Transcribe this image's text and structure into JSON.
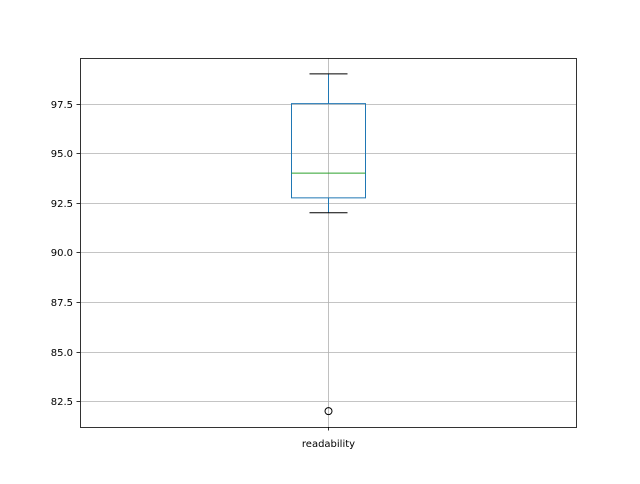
{
  "chart_data": {
    "type": "boxplot",
    "title": "",
    "xlabel": "",
    "ylabel": "",
    "categories": [
      "readability"
    ],
    "boxes": [
      {
        "category": "readability",
        "whisker_low": 92.0,
        "q1": 92.75,
        "median": 94.0,
        "q3": 97.5,
        "whisker_high": 99.0,
        "outliers": [
          82.0
        ]
      }
    ],
    "ylim": [
      81.2,
      99.8
    ],
    "yticks": [
      82.5,
      85.0,
      87.5,
      90.0,
      92.5,
      95.0,
      97.5
    ],
    "ytick_labels": [
      "82.5",
      "85.0",
      "87.5",
      "90.0",
      "92.5",
      "95.0",
      "97.5"
    ],
    "grid": true,
    "colors": {
      "box": "#1f77b4",
      "median": "#2ca02c",
      "whisker": "#1f77b4",
      "cap": "#000000",
      "grid": "#b0b0b0"
    }
  }
}
